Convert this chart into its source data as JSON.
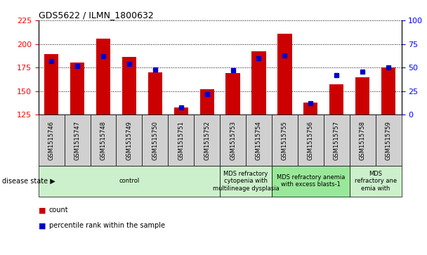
{
  "title": "GDS5622 / ILMN_1800632",
  "samples": [
    "GSM1515746",
    "GSM1515747",
    "GSM1515748",
    "GSM1515749",
    "GSM1515750",
    "GSM1515751",
    "GSM1515752",
    "GSM1515753",
    "GSM1515754",
    "GSM1515755",
    "GSM1515756",
    "GSM1515757",
    "GSM1515758",
    "GSM1515759"
  ],
  "counts": [
    189,
    180,
    206,
    186,
    170,
    133,
    152,
    169,
    192,
    211,
    138,
    157,
    165,
    175
  ],
  "percentiles": [
    57,
    52,
    62,
    54,
    48,
    8,
    22,
    47,
    60,
    63,
    12,
    42,
    46,
    50
  ],
  "ylim_left": [
    125,
    225
  ],
  "ylim_right": [
    0,
    100
  ],
  "yticks_left": [
    125,
    150,
    175,
    200,
    225
  ],
  "yticks_right": [
    0,
    25,
    50,
    75,
    100
  ],
  "bar_color": "#cc0000",
  "percentile_color": "#0000cc",
  "disease_groups": [
    {
      "label": "control",
      "start": 0,
      "end": 7,
      "color": "#ccf0cc"
    },
    {
      "label": "MDS refractory\ncytopenia with\nmultilineage dysplasia",
      "start": 7,
      "end": 9,
      "color": "#ccf0cc"
    },
    {
      "label": "MDS refractory anemia\nwith excess blasts-1",
      "start": 9,
      "end": 12,
      "color": "#99e899"
    },
    {
      "label": "MDS\nrefractory ane\nemia with",
      "start": 12,
      "end": 14,
      "color": "#ccf0cc"
    }
  ],
  "disease_state_label": "disease state",
  "legend_count_label": "count",
  "legend_percentile_label": "percentile rank within the sample",
  "bar_bottom": 125,
  "tick_box_color": "#d0d0d0",
  "sample_fontsize": 6,
  "disease_fontsize": 6
}
